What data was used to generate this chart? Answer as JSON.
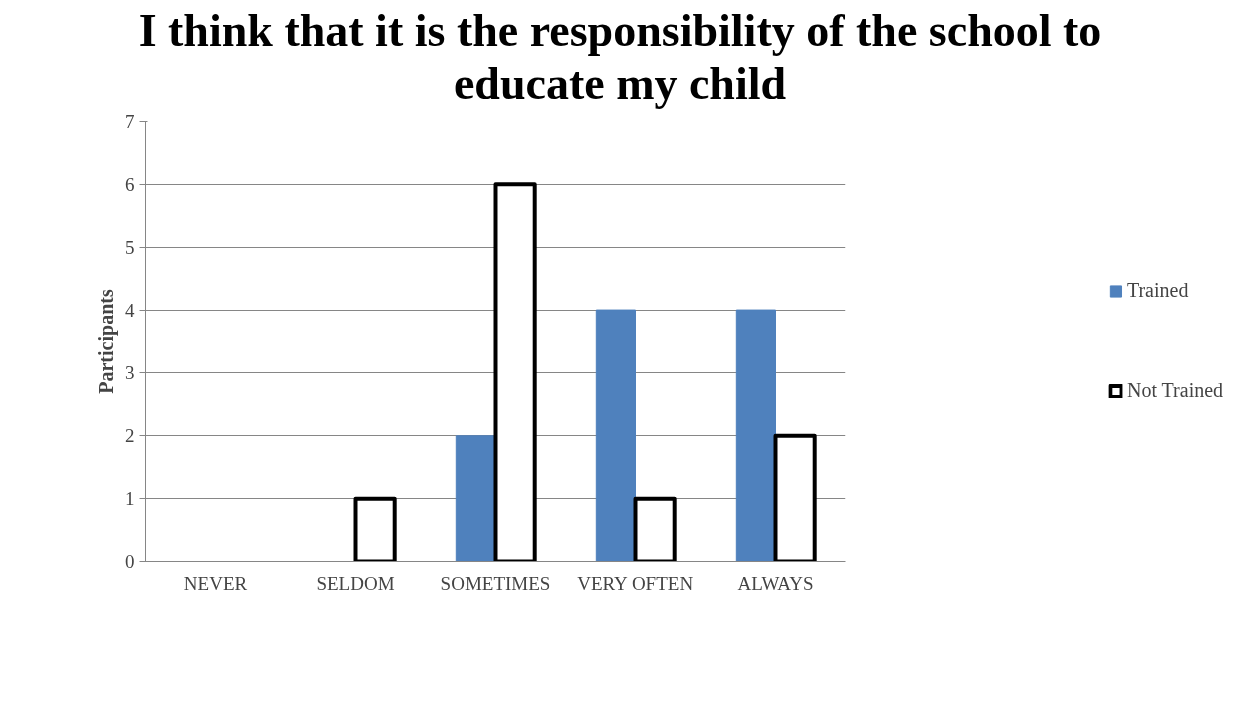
{
  "chart_data": {
    "type": "bar",
    "title": "I think that it is the responsibility of the school to educate my child",
    "ylabel": "Participants",
    "categories": [
      "NEVER",
      "SELDOM",
      "SOMETIMES",
      "VERY OFTEN",
      "ALWAYS"
    ],
    "series": [
      {
        "name": "Trained",
        "color": "#4f81bd",
        "values": [
          0,
          0,
          2,
          4,
          4
        ]
      },
      {
        "name": "Not Trained",
        "color": "#ffffff",
        "values": [
          0,
          1,
          6,
          1,
          2
        ]
      }
    ],
    "ylim": [
      0,
      7
    ],
    "yticks": [
      0,
      1,
      2,
      3,
      4,
      5,
      6,
      7
    ],
    "grid": "y",
    "legend": "right"
  }
}
